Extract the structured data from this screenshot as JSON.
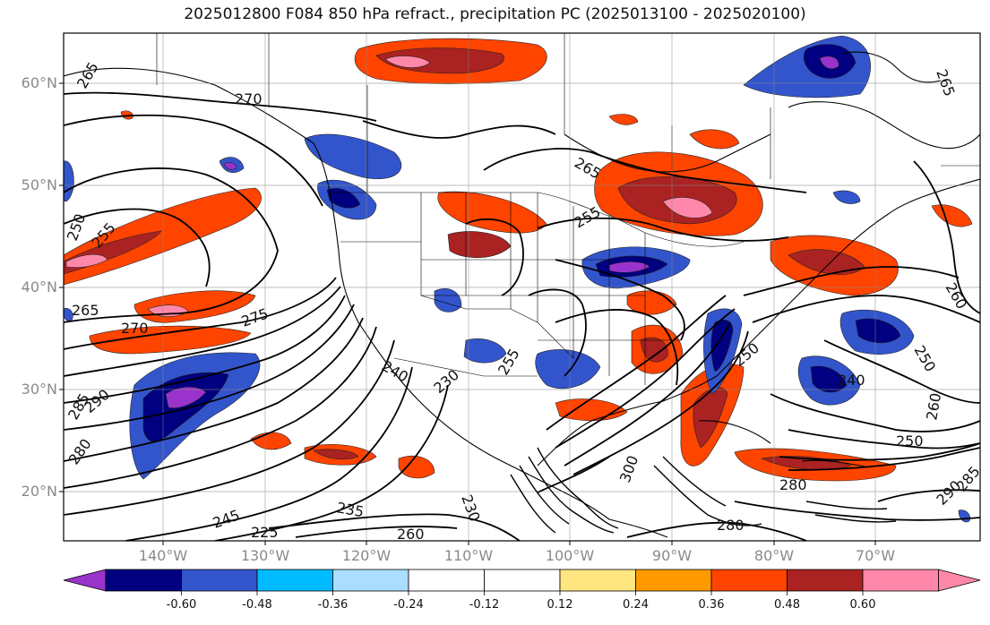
{
  "title": "2025012800 F084 850 hPa refract., precipitation PC (2025013100 - 2025020100)",
  "lat_labels": [
    "60°N",
    "50°N",
    "40°N",
    "30°N",
    "20°N"
  ],
  "lon_labels": [
    "140°W",
    "130°W",
    "120°W",
    "110°W",
    "100°W",
    "90°W",
    "80°W",
    "70°W"
  ],
  "colorbar": {
    "ticks": [
      "-0.60",
      "-0.48",
      "-0.36",
      "-0.24",
      "-0.12",
      "0.12",
      "0.24",
      "0.36",
      "0.48",
      "0.60"
    ],
    "colors": [
      "#9933cc",
      "#000080",
      "#3355cc",
      "#00bbff",
      "#aaddff",
      "#ffffff",
      "#ffe680",
      "#ff9900",
      "#ff4400",
      "#aa2222",
      "#ff88aa"
    ]
  },
  "contour_labels": [
    "270",
    "265",
    "265",
    "250",
    "255",
    "255",
    "265",
    "270",
    "275",
    "260",
    "260",
    "250",
    "240",
    "250",
    "265",
    "280",
    "285",
    "290",
    "230",
    "235",
    "245",
    "260",
    "255",
    "290",
    "280",
    "285",
    "240",
    "250",
    "280",
    "225",
    "230",
    "300"
  ]
}
